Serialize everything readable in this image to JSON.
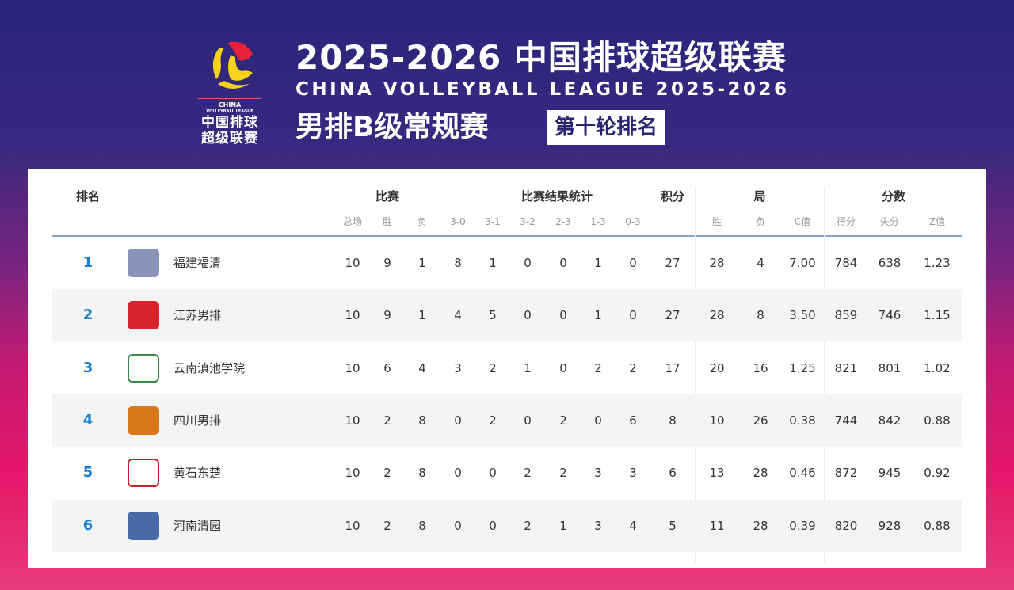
{
  "header": {
    "title": "2025-2026 中国排球超级联赛",
    "subtitle": "CHINA VOLLEYBALL LEAGUE 2025-2026",
    "competition": "男排B级常规赛",
    "round": "第十轮排名",
    "logo_text": {
      "en1": "CHINA",
      "en2": "VOLLEYBALL LEAGUE",
      "cn1": "中国排球",
      "cn2": "超级联赛"
    }
  },
  "colors": {
    "rank": "#1d7fd0",
    "logo_red": "#e8213a",
    "logo_yellow": "#f6d21a"
  },
  "table": {
    "groups": [
      "排名",
      "比赛",
      "比赛结果统计",
      "积分",
      "局",
      "分数"
    ],
    "subheaders": [
      "总场",
      "胜",
      "负",
      "3-0",
      "3-1",
      "3-2",
      "2-3",
      "1-3",
      "0-3",
      "胜",
      "负",
      "C值",
      "得分",
      "失分",
      "Z值"
    ],
    "rows": [
      {
        "rank": "1",
        "team": "福建福清",
        "logo": "shark-logo",
        "v": [
          "10",
          "9",
          "1",
          "8",
          "1",
          "0",
          "0",
          "1",
          "0",
          "27",
          "28",
          "4",
          "7.00",
          "784",
          "638",
          "1.23"
        ]
      },
      {
        "rank": "2",
        "team": "江苏男排",
        "logo": "jiangsu-shield-logo",
        "v": [
          "10",
          "9",
          "1",
          "4",
          "5",
          "0",
          "0",
          "1",
          "0",
          "27",
          "28",
          "8",
          "3.50",
          "859",
          "746",
          "1.15"
        ]
      },
      {
        "rank": "3",
        "team": "云南滇池学院",
        "logo": "dianchi-college-logo",
        "v": [
          "10",
          "6",
          "4",
          "3",
          "2",
          "1",
          "0",
          "2",
          "2",
          "17",
          "20",
          "16",
          "1.25",
          "821",
          "801",
          "1.02"
        ]
      },
      {
        "rank": "4",
        "team": "四川男排",
        "logo": "phoenix-logo",
        "v": [
          "10",
          "2",
          "8",
          "0",
          "2",
          "0",
          "2",
          "0",
          "6",
          "8",
          "10",
          "26",
          "0.38",
          "744",
          "842",
          "0.88"
        ]
      },
      {
        "rank": "5",
        "team": "黄石东楚",
        "logo": "dongchu-logo",
        "v": [
          "10",
          "2",
          "8",
          "0",
          "0",
          "2",
          "2",
          "3",
          "3",
          "6",
          "13",
          "28",
          "0.46",
          "872",
          "945",
          "0.92"
        ]
      },
      {
        "rank": "6",
        "team": "河南清园",
        "logo": "henan-shield-logo",
        "v": [
          "10",
          "2",
          "8",
          "0",
          "0",
          "2",
          "1",
          "3",
          "4",
          "5",
          "11",
          "28",
          "0.39",
          "820",
          "928",
          "0.88"
        ]
      }
    ]
  }
}
